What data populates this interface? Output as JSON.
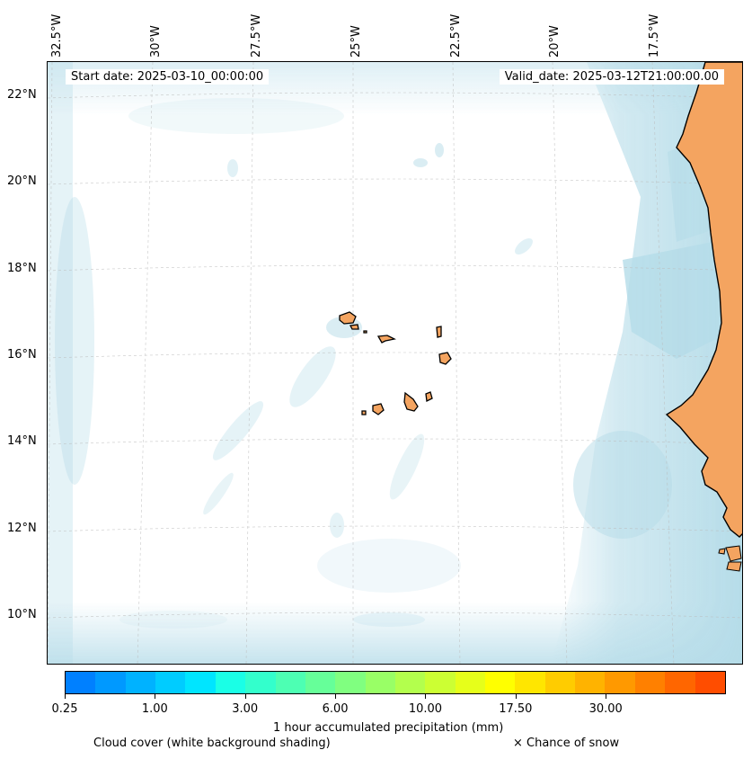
{
  "map": {
    "title_start": "Start date: 2025-03-10_00:00:00",
    "title_valid": "Valid_date: 2025-03-12T21:00:00.00",
    "lon_labels": [
      "32.5°W",
      "30°W",
      "27.5°W",
      "25°W",
      "22.5°W",
      "20°W",
      "17.5°W"
    ],
    "lat_labels": [
      "22°N",
      "20°N",
      "18°N",
      "16°N",
      "14°N",
      "12°N",
      "10°N"
    ],
    "land_color": "#f4a460",
    "cloud_color": "#add8e6"
  },
  "colorbar": {
    "label": "1 hour accumulated precipitation (mm)",
    "tick_labels": [
      "0.25",
      "1.00",
      "3.00",
      "6.00",
      "10.00",
      "17.50",
      "30.00"
    ],
    "colors": [
      "#0080ff",
      "#0099ff",
      "#00b2ff",
      "#00ccff",
      "#00e5ff",
      "#1affe6",
      "#33ffcc",
      "#4dffb3",
      "#66ff99",
      "#80ff80",
      "#99ff66",
      "#b3ff4d",
      "#ccff33",
      "#e6ff1a",
      "#ffff00",
      "#ffe600",
      "#ffcc00",
      "#ffb300",
      "#ff9900",
      "#ff8000",
      "#ff6600",
      "#ff4d00"
    ]
  },
  "legend": {
    "cloud_cover": "Cloud cover (white background shading)",
    "snow": "× Chance of snow"
  }
}
